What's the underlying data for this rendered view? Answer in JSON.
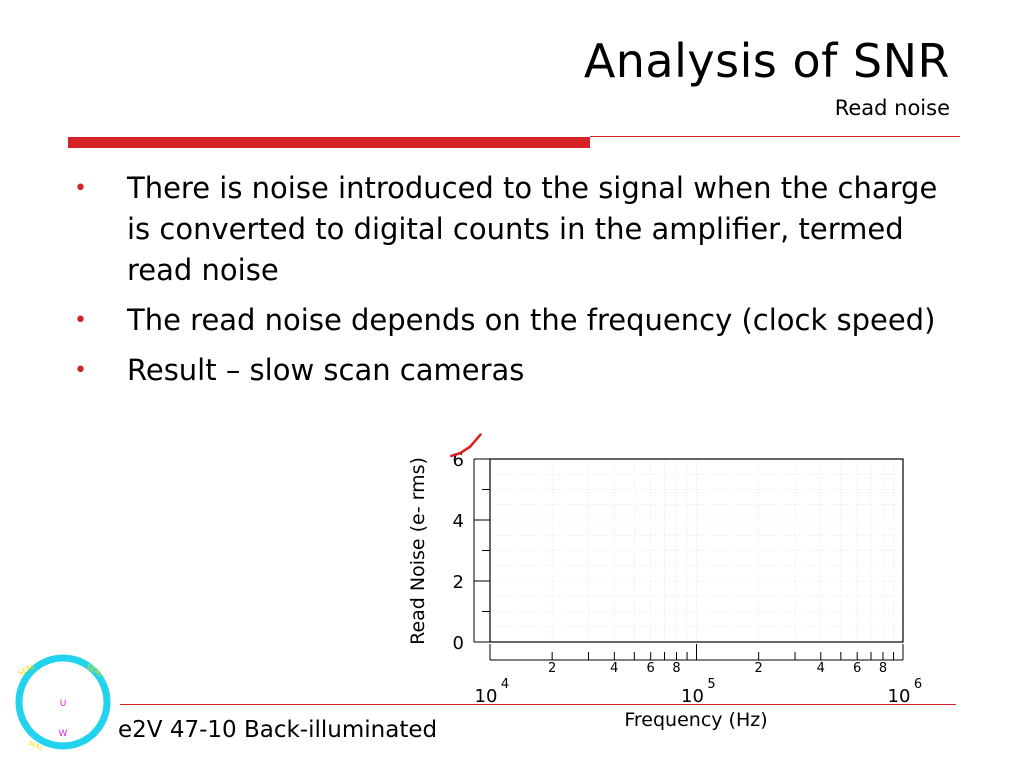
{
  "slide": {
    "title": "Analysis of SNR",
    "subtitle": "Read noise",
    "bullets": [
      "There is noise introduced to the signal when the charge is converted to digital counts in the amplifier, termed read noise",
      "The read noise depends on the frequency (clock speed)",
      "Result – slow scan cameras"
    ],
    "footer": "e2V 47-10 Back-illuminated",
    "logo": {
      "top_letter": "U",
      "bottom_letter": "W",
      "icon": "university-seal-icon"
    },
    "colors": {
      "accent": "#d42226",
      "curve": "#e01c1c",
      "logo_ring": "#22d3ee",
      "logo_text": "#f0e000",
      "logo_letters": "#e020e0"
    }
  },
  "chart_data": {
    "type": "line",
    "xlabel": "Frequency (Hz)",
    "ylabel": "Read Noise (e- rms)",
    "xscale": "log",
    "xlim": [
      10000,
      1000000
    ],
    "ylim": [
      0,
      6
    ],
    "y_ticks": [
      "0",
      "2",
      "4",
      "6"
    ],
    "x_major_ticks": [
      {
        "base": "10",
        "exp": "4"
      },
      {
        "base": "10",
        "exp": "5"
      },
      {
        "base": "10",
        "exp": "6"
      }
    ],
    "x_minor_labels": [
      "2",
      "4",
      "6",
      "8",
      "2",
      "4",
      "6",
      "8"
    ],
    "series": [
      {
        "x": [
          6500,
          7200,
          8000,
          9000
        ],
        "y": [
          6.1,
          6.2,
          6.4,
          6.8
        ]
      }
    ]
  }
}
